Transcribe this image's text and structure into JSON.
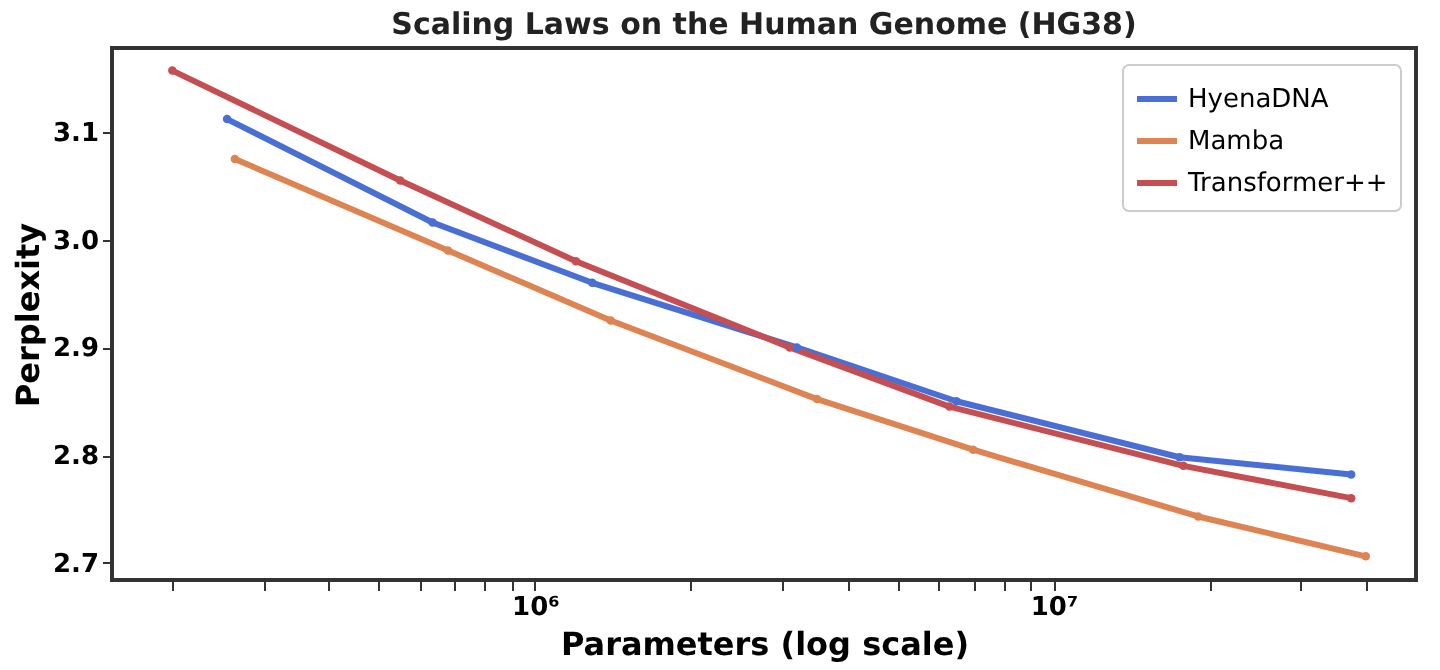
{
  "chart_data": {
    "type": "line",
    "title": "Scaling Laws on the Human Genome (HG38)",
    "xlabel": "Parameters (log scale)",
    "ylabel": "Perplexity",
    "log": "x",
    "legend": "top right",
    "marker": "circle",
    "line_style": "solid",
    "grid": false,
    "xlim": [
      153000,
      50000000
    ],
    "ylim": [
      2.684,
      3.178
    ],
    "xticks": [
      {
        "value": 200000,
        "label": null
      },
      {
        "value": 300000,
        "label": null
      },
      {
        "value": 400000,
        "label": null
      },
      {
        "value": 500000,
        "label": null
      },
      {
        "value": 600000,
        "label": null
      },
      {
        "value": 700000,
        "label": null
      },
      {
        "value": 800000,
        "label": null
      },
      {
        "value": 900000,
        "label": null
      },
      {
        "value": 1000000,
        "label": "10⁶"
      },
      {
        "value": 2000000,
        "label": null
      },
      {
        "value": 3000000,
        "label": null
      },
      {
        "value": 4000000,
        "label": null
      },
      {
        "value": 5000000,
        "label": null
      },
      {
        "value": 6000000,
        "label": null
      },
      {
        "value": 7000000,
        "label": null
      },
      {
        "value": 8000000,
        "label": null
      },
      {
        "value": 9000000,
        "label": null
      },
      {
        "value": 10000000,
        "label": "10⁷"
      },
      {
        "value": 20000000,
        "label": null
      },
      {
        "value": 30000000,
        "label": null
      },
      {
        "value": 40000000,
        "label": null
      }
    ],
    "yticks": [
      2.7,
      2.8,
      2.9,
      {
        "value": 3.0,
        "label": "3.0"
      },
      3.1
    ],
    "series": [
      {
        "name": "HyenaDNA",
        "color": "#4a6fd4",
        "x": [
          255000,
          635000,
          1290000,
          3200000,
          6500000,
          17500000,
          37500000
        ],
        "values": [
          3.112,
          3.016,
          2.96,
          2.9,
          2.85,
          2.798,
          2.782
        ]
      },
      {
        "name": "Mamba",
        "color": "#dd8452",
        "x": [
          264000,
          680000,
          1400000,
          3500000,
          7000000,
          19000000,
          40000000
        ],
        "values": [
          3.075,
          2.99,
          2.925,
          2.852,
          2.805,
          2.743,
          2.706
        ]
      },
      {
        "name": "Transformer++",
        "color": "#c44e52",
        "x": [
          200000,
          550000,
          1200000,
          3100000,
          6300000,
          17800000,
          37500000
        ],
        "values": [
          3.157,
          3.055,
          2.98,
          2.9,
          2.845,
          2.79,
          2.76
        ]
      }
    ]
  }
}
